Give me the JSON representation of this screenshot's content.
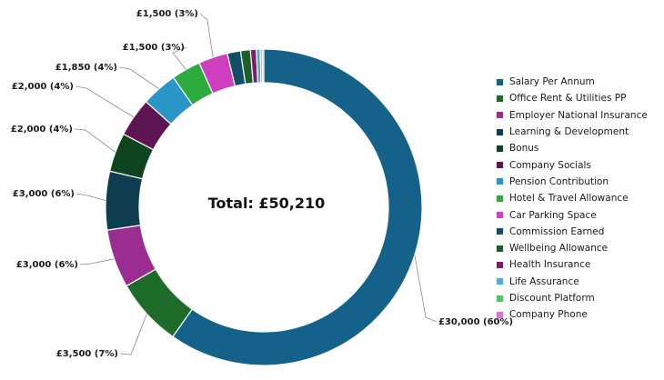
{
  "chart_data": {
    "type": "pie",
    "donut": true,
    "center_text": "Total: £50,210",
    "total": 50210,
    "legend_position": "right",
    "slices": [
      {
        "name": "Salary Per Annum",
        "value": 30000,
        "label": "£30,000 (60%)",
        "color": "#14628a"
      },
      {
        "name": "Office Rent & Utilities PP",
        "value": 3500,
        "label": "£3,500 (7%)",
        "color": "#1f6b2a"
      },
      {
        "name": "Employer National Insurance",
        "value": 3000,
        "label": "£3,000 (6%)",
        "color": "#9b2c92"
      },
      {
        "name": "Learning & Development",
        "value": 3000,
        "label": "£3,000 (6%)",
        "color": "#0d3d4f"
      },
      {
        "name": "Bonus",
        "value": 2000,
        "label": "£2,000 (4%)",
        "color": "#0e4420"
      },
      {
        "name": "Company Socials",
        "value": 2000,
        "label": "£2,000 (4%)",
        "color": "#5e1554"
      },
      {
        "name": "Pension Contribution",
        "value": 1850,
        "label": "£1,850 (4%)",
        "color": "#2a95c7"
      },
      {
        "name": "Hotel & Travel Allowance",
        "value": 1500,
        "label": "£1,500 (3%)",
        "color": "#2cab3e"
      },
      {
        "name": "Car Parking Space",
        "value": 1500,
        "label": "£1,500 (3%)",
        "color": "#cf3fbf"
      },
      {
        "name": "Commission Earned",
        "value": 680,
        "label": "",
        "color": "#124f66"
      },
      {
        "name": "Wellbeing Allowance",
        "value": 500,
        "label": "",
        "color": "#1d5e2b"
      },
      {
        "name": "Health Insurance",
        "value": 300,
        "label": "",
        "color": "#7a1f6e"
      },
      {
        "name": "Life Assurance",
        "value": 200,
        "label": "",
        "color": "#4ab0d8"
      },
      {
        "name": "Discount Platform",
        "value": 100,
        "label": "",
        "color": "#4ec764"
      },
      {
        "name": "Company Phone",
        "value": 80,
        "label": "",
        "color": "#e36fd9"
      }
    ]
  }
}
